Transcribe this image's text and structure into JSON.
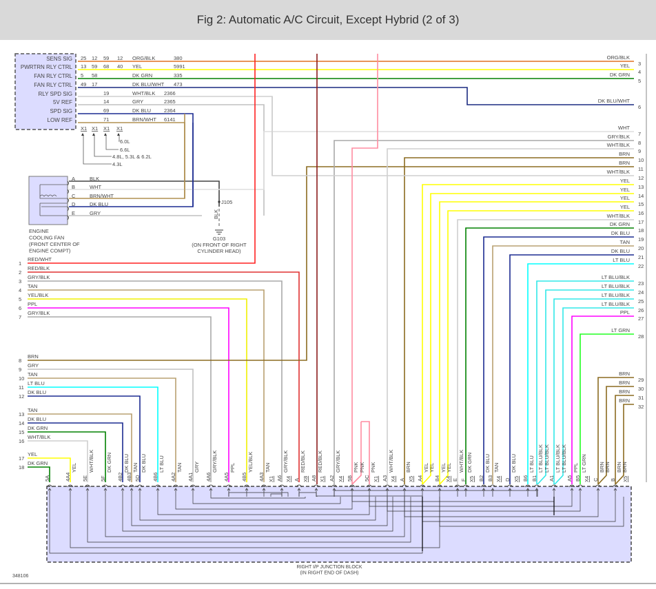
{
  "header": {
    "title": "Fig 2: Automatic A/C Circuit, Except Hybrid (2 of 3)"
  },
  "wire_colors": {
    "ORG/BLK": "#e07020",
    "YEL": "#ffff00",
    "DK GRN": "#008000",
    "DK BLU/WHT": "#1a2a80",
    "WHT/BLK": "#cfcfcf",
    "GRY": "#c0c0c0",
    "DK BLU": "#1a2a90",
    "BRN/WHT": "#b09050",
    "BLK": "#444444",
    "WHT": "#dddddd",
    "RED/WHT": "#ff2020",
    "RED/BLK": "#e03030",
    "GRY/BLK": "#a8a8a8",
    "TAN": "#b8a070",
    "YEL/BLK": "#f0f000",
    "PPL": "#ff00ff",
    "BRN": "#8b6b20",
    "LT BLU": "#00ffff",
    "LT BLU/BLK": "#30e8e8",
    "LT GRN": "#20ff20",
    "PNK": "#ff8ca0",
    "DKRED": "#8b1a1a"
  },
  "module": {
    "signals": [
      "SENS SIG",
      "PWRTRN RLY CTRL",
      "FAN RLY CTRL",
      "FAN RLY CTRL",
      "RLY SPD SIG",
      "5V REF",
      "SPD SIG",
      "LOW REF"
    ],
    "pins": [
      [
        "25",
        "12",
        "59",
        "12"
      ],
      [
        "13",
        "59",
        "68",
        "40"
      ],
      [
        "5",
        "58",
        "",
        ""
      ],
      [
        "49",
        "17",
        "",
        ""
      ],
      [
        "",
        "",
        "19",
        ""
      ],
      [
        "",
        "",
        "14",
        ""
      ],
      [
        "",
        "",
        "69",
        ""
      ],
      [
        "",
        "",
        "71",
        ""
      ]
    ],
    "wire": [
      "ORG/BLK",
      "YEL",
      "DK GRN",
      "DK BLU/WHT",
      "WHT/BLK",
      "GRY",
      "DK BLU",
      "BRN/WHT"
    ],
    "circuit": [
      "380",
      "5991",
      "335",
      "473",
      "2366",
      "2365",
      "2364",
      "6141"
    ],
    "connectors": [
      "X1",
      "X1",
      "X1",
      "X1"
    ],
    "engine_notes": [
      "6.0L",
      "6.6L",
      "4.8L, 5.3L & 6.2L",
      "4.3L"
    ]
  },
  "fan": {
    "pins": [
      "A",
      "B",
      "C",
      "D",
      "E"
    ],
    "wires": [
      "BLK",
      "WHT",
      "BRN/WHT",
      "DK BLU",
      "GRY"
    ],
    "label": [
      "ENGINE",
      "COOLING FAN",
      "(FRONT CENTER OF",
      "ENGINE COMPT)"
    ]
  },
  "ground": {
    "splice": "J105",
    "wire": "BLK",
    "id": "G103",
    "location": [
      "(ON FRONT OF RIGHT",
      "CYLINDER HEAD)"
    ]
  },
  "left_wires": [
    {
      "n": "1",
      "c": "RED/WHT"
    },
    {
      "n": "2",
      "c": "RED/BLK"
    },
    {
      "n": "3",
      "c": "GRY/BLK"
    },
    {
      "n": "4",
      "c": "TAN"
    },
    {
      "n": "5",
      "c": "YEL/BLK"
    },
    {
      "n": "6",
      "c": "PPL"
    },
    {
      "n": "7",
      "c": "GRY/BLK"
    },
    {
      "n": "8",
      "c": "BRN"
    },
    {
      "n": "9",
      "c": "GRY"
    },
    {
      "n": "10",
      "c": "TAN"
    },
    {
      "n": "11",
      "c": "LT BLU"
    },
    {
      "n": "12",
      "c": "DK BLU"
    },
    {
      "n": "13",
      "c": "TAN"
    },
    {
      "n": "14",
      "c": "DK BLU"
    },
    {
      "n": "15",
      "c": "DK GRN"
    },
    {
      "n": "16",
      "c": "WHT/BLK"
    },
    {
      "n": "17",
      "c": "YEL"
    },
    {
      "n": "18",
      "c": "DK GRN"
    }
  ],
  "right_wires": [
    {
      "n": "3",
      "c": "ORG/BLK"
    },
    {
      "n": "4",
      "c": "YEL"
    },
    {
      "n": "5",
      "c": "DK GRN"
    },
    {
      "n": "6",
      "c": "DK BLU/WHT"
    },
    {
      "n": "7",
      "c": "WHT"
    },
    {
      "n": "8",
      "c": "GRY/BLK"
    },
    {
      "n": "9",
      "c": "WHT/BLK"
    },
    {
      "n": "10",
      "c": "BRN"
    },
    {
      "n": "11",
      "c": "BRN"
    },
    {
      "n": "12",
      "c": "WHT/BLK"
    },
    {
      "n": "13",
      "c": "YEL"
    },
    {
      "n": "14",
      "c": "YEL"
    },
    {
      "n": "15",
      "c": "YEL"
    },
    {
      "n": "16",
      "c": "YEL"
    },
    {
      "n": "17",
      "c": "WHT/BLK"
    },
    {
      "n": "18",
      "c": "DK GRN"
    },
    {
      "n": "19",
      "c": "DK BLU"
    },
    {
      "n": "20",
      "c": "TAN"
    },
    {
      "n": "21",
      "c": "DK BLU"
    },
    {
      "n": "22",
      "c": "LT BLU"
    },
    {
      "n": "23",
      "c": "LT BLU/BLK"
    },
    {
      "n": "24",
      "c": "LT BLU/BLK"
    },
    {
      "n": "25",
      "c": "LT BLU/BLK"
    },
    {
      "n": "26",
      "c": "LT BLU/BLK"
    },
    {
      "n": "27",
      "c": "PPL"
    },
    {
      "n": "28",
      "c": "LT GRN"
    },
    {
      "n": "29",
      "c": "BRN"
    },
    {
      "n": "30",
      "c": "BRN"
    },
    {
      "n": "31",
      "c": "BRN"
    },
    {
      "n": "32",
      "c": "BRN"
    }
  ],
  "junction_block": {
    "pins": [
      {
        "id": "5A",
        "w": ""
      },
      {
        "id": "4A4",
        "w": "YEL"
      },
      {
        "id": "5E",
        "w": "WHT/BLK"
      },
      {
        "id": "5F",
        "w": "DK GRN"
      },
      {
        "id": "4B2",
        "w": "DK BLU"
      },
      {
        "id": "4B3",
        "w": "TAN"
      },
      {
        "id": "5D",
        "w": "DK BLU"
      },
      {
        "id": "4B6",
        "w": "LT BLU"
      },
      {
        "id": "4A2",
        "w": "TAN"
      },
      {
        "id": "4A1",
        "w": "GRY"
      },
      {
        "id": "4A6",
        "w": "GRY/BLK"
      },
      {
        "id": "4A5",
        "w": "PPL"
      },
      {
        "id": "4B5",
        "w": "YEL/BLK"
      },
      {
        "id": "4A3",
        "w": "TAN"
      },
      {
        "id": "X1",
        "w": ""
      },
      {
        "id": "A6",
        "w": "GRY/BLK"
      },
      {
        "id": "X4",
        "w": ""
      },
      {
        "id": "A",
        "w": "RED/BLK"
      },
      {
        "id": "X8",
        "w": ""
      },
      {
        "id": "A8",
        "w": "RED/BLK"
      },
      {
        "id": "X1",
        "w": ""
      },
      {
        "id": "A2",
        "w": "GRY/BLK"
      },
      {
        "id": "X4",
        "w": ""
      },
      {
        "id": "5B",
        "w": "PNK"
      },
      {
        "id": "",
        "w": "PNK"
      },
      {
        "id": "5C",
        "w": "PNK"
      },
      {
        "id": "X1",
        "w": ""
      },
      {
        "id": "A3",
        "w": "WHT/BLK"
      },
      {
        "id": "X4",
        "w": ""
      },
      {
        "id": "A",
        "w": "BRN"
      },
      {
        "id": "X5",
        "w": ""
      },
      {
        "id": "A4",
        "w": "YEL"
      },
      {
        "id": "",
        "w": "YEL"
      },
      {
        "id": "B4",
        "w": "YEL"
      },
      {
        "id": "",
        "w": "YEL"
      },
      {
        "id": "X4",
        "w": ""
      },
      {
        "id": "E",
        "w": "WHT/BLK"
      },
      {
        "id": "F",
        "w": "DK GRN"
      },
      {
        "id": "X5",
        "w": ""
      },
      {
        "id": "B2",
        "w": "DK BLU"
      },
      {
        "id": "B3",
        "w": "TAN"
      },
      {
        "id": "X4",
        "w": ""
      },
      {
        "id": "D",
        "w": "DK BLU"
      },
      {
        "id": "X5",
        "w": ""
      },
      {
        "id": "B6",
        "w": "LT BLU"
      },
      {
        "id": "B1",
        "w": "LT BLU/BLK"
      },
      {
        "id": "",
        "w": "LT BLU/BLK"
      },
      {
        "id": "A1",
        "w": "LT BLU/BLK"
      },
      {
        "id": "",
        "w": "LT BLU/BLK"
      },
      {
        "id": "A5",
        "w": "PPL"
      },
      {
        "id": "B5",
        "w": "LT GRN"
      },
      {
        "id": "X4",
        "w": ""
      },
      {
        "id": "C",
        "w": "BRN"
      },
      {
        "id": "",
        "w": "BRN"
      },
      {
        "id": "B",
        "w": "BRN"
      },
      {
        "id": "",
        "w": "BRN"
      },
      {
        "id": "X5",
        "w": ""
      }
    ],
    "label": [
      "RIGHT I/P JUNCTION BLOCK",
      "(IN RIGHT END OF DASH)"
    ]
  },
  "figure_id": "348106"
}
